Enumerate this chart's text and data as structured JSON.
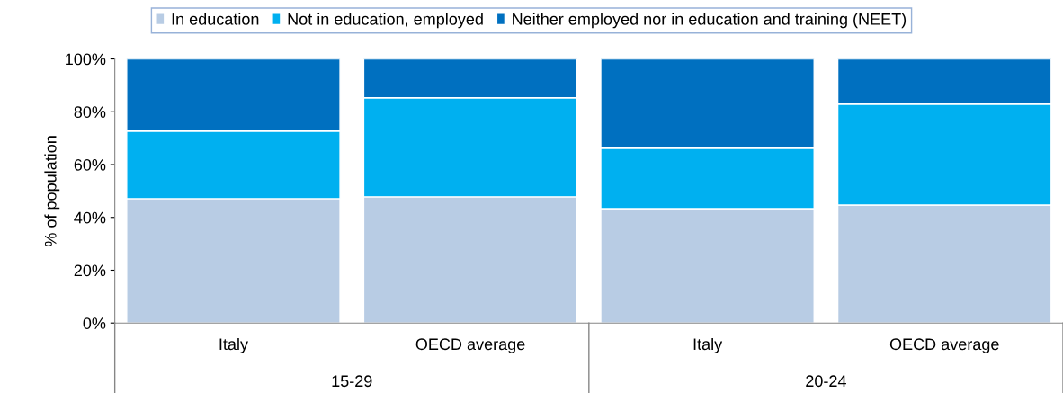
{
  "chart_data": {
    "type": "bar",
    "stacked": true,
    "categories": [
      "Italy",
      "OECD average",
      "Italy",
      "OECD average"
    ],
    "series": [
      {
        "name": "In education",
        "color": "#b8cce4",
        "values": [
          47.1,
          47.8,
          43.3,
          44.7
        ]
      },
      {
        "name": "Not in education, employed",
        "color": "#00b0f0",
        "values": [
          25.6,
          37.5,
          22.9,
          38.2
        ]
      },
      {
        "name": "Neither employed nor in education and training (NEET)",
        "color": "#0070c0",
        "values": [
          27.3,
          14.7,
          33.8,
          17.1
        ]
      }
    ],
    "ylabel": "% of population",
    "ylim": [
      0,
      100
    ],
    "yticks": [
      {
        "value": 0,
        "label": "0%"
      },
      {
        "value": 20,
        "label": "20%"
      },
      {
        "value": 40,
        "label": "40%"
      },
      {
        "value": 60,
        "label": "60%"
      },
      {
        "value": 80,
        "label": "80%"
      },
      {
        "value": 100,
        "label": "100%"
      }
    ],
    "annotations": [
      "15-29",
      "20-24"
    ],
    "grid": false,
    "legend": "top"
  }
}
